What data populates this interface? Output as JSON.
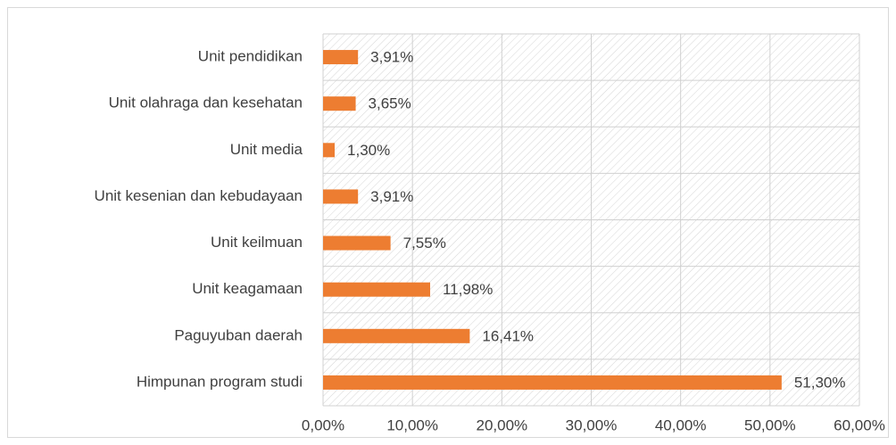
{
  "chart_data": {
    "type": "barh",
    "categories": [
      "Unit pendidikan",
      "Unit olahraga dan kesehatan",
      "Unit media",
      "Unit kesenian dan kebudayaan",
      "Unit keilmuan",
      "Unit keagamaan",
      "Paguyuban daerah",
      "Himpunan program studi"
    ],
    "values": [
      3.91,
      3.65,
      1.3,
      3.91,
      7.55,
      11.98,
      16.41,
      51.3
    ],
    "value_labels": [
      "3,91%",
      "3,65%",
      "1,30%",
      "3,91%",
      "7,55%",
      "11,98%",
      "16,41%",
      "51,30%"
    ],
    "color": "#ed7d31",
    "xlim": [
      0,
      60
    ],
    "xticks": [
      {
        "value": 0,
        "label": "0,00%"
      },
      {
        "value": 10,
        "label": "10,00%"
      },
      {
        "value": 20,
        "label": "20,00%"
      },
      {
        "value": 30,
        "label": "30,00%"
      },
      {
        "value": 40,
        "label": "40,00%"
      },
      {
        "value": 50,
        "label": "50,00%"
      },
      {
        "value": 60,
        "label": "60,00%"
      }
    ],
    "grid": true
  }
}
